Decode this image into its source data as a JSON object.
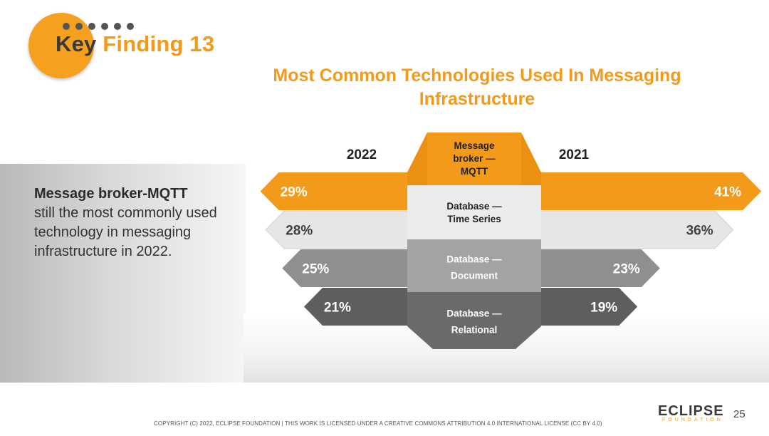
{
  "header": {
    "key_word": "Key",
    "finding_text": "Finding 13"
  },
  "chart_data": {
    "type": "bar",
    "title": "Most Common Technologies Used In Messaging Infrastructure",
    "title_lines": [
      "Most Common Technologies Used In Messaging",
      "Infrastructure"
    ],
    "left_year": "2022",
    "right_year": "2021",
    "categories": [
      {
        "lines": [
          "Message",
          "broker —",
          "MQTT"
        ]
      },
      {
        "lines": [
          "Database —",
          "Time Series"
        ]
      },
      {
        "lines": [
          "Database —",
          "Document"
        ]
      },
      {
        "lines": [
          "Database —",
          "Relational"
        ]
      }
    ],
    "series": [
      {
        "name": "2022",
        "values": [
          29,
          28,
          25,
          21
        ]
      },
      {
        "name": "2021",
        "values": [
          41,
          36,
          23,
          19
        ]
      }
    ],
    "value_suffix": "%",
    "colors": [
      "#f39a1a",
      "#e6e6e6",
      "#8f8f8f",
      "#5e5e5e"
    ],
    "label_colors": [
      "#ffffff",
      "#404040",
      "#ffffff",
      "#ffffff"
    ],
    "center_label_colors": [
      "#222222",
      "#222222",
      "#ffffff",
      "#ffffff"
    ]
  },
  "takeaway": {
    "bold": "Message broker-MQTT",
    "text": "still the most commonly used technology in messaging infrastructure in 2022."
  },
  "footer": {
    "copyright": "COPYRIGHT (C) 2022, ECLIPSE FOUNDATION | THIS WORK IS LICENSED UNDER A CREATIVE COMMONS ATTRIBUTION 4.0 INTERNATIONAL LICENSE (CC BY 4.0)",
    "logo_name": "ECLIPSE",
    "logo_sub": "FOUNDATION",
    "page_number": "25"
  }
}
